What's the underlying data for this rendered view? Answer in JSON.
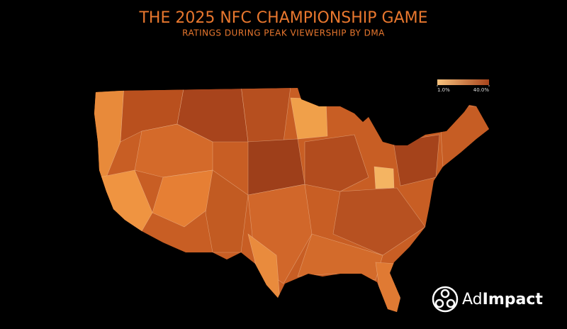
{
  "header": {
    "title": "THE 2025 NFC CHAMPIONSHIP GAME",
    "subtitle": "RATINGS DURING PEAK VIEWERSHIP BY DMA"
  },
  "map": {
    "legend": {
      "min": {
        "value": 1.0,
        "label": "1.0%"
      },
      "max": {
        "value": 40.0,
        "label": "40.0%"
      },
      "colors": [
        "#f7c27d",
        "#a8441c"
      ]
    }
  },
  "logo": {
    "prefix": "Ad",
    "name": "Impact"
  }
}
